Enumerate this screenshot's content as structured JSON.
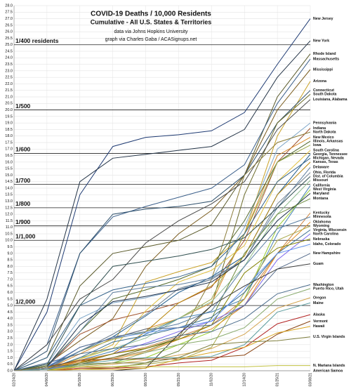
{
  "chart_data": {
    "type": "line",
    "title": "COVID-19 Deaths / 10,000 Residents",
    "subtitle": "Cumulative - All U.S. States & Territories",
    "notes": [
      "data via Johns Hopkins University",
      "graph via Charles Gaba / ACASignups.net"
    ],
    "categories": [
      "02/24/20",
      "04/06/20",
      "05/18/20",
      "06/29/20",
      "08/10/20",
      "09/21/20",
      "11/02/20",
      "12/14/20",
      "01/25/21",
      "03/08/21"
    ],
    "ylim": [
      0,
      28
    ],
    "yticks": [
      {
        "value": 0,
        "label": "0.0"
      },
      0.5,
      {
        "value": 1,
        "label": "1.0"
      },
      1.5,
      {
        "value": 2,
        "label": "2.0"
      },
      2.5,
      {
        "value": 3,
        "label": "3.0"
      },
      3.5,
      {
        "value": 4,
        "label": "4.0"
      },
      4.5,
      {
        "value": 5,
        "label": "5.0"
      },
      5.5,
      {
        "value": 6,
        "label": "6.0"
      },
      6.5,
      {
        "value": 7,
        "label": "7.0"
      },
      7.5,
      {
        "value": 8,
        "label": "8.0"
      },
      8.5,
      {
        "value": 9,
        "label": "9.0"
      },
      9.5,
      {
        "value": 10,
        "label": "10.0"
      },
      10.5,
      {
        "value": 11,
        "label": "11.0"
      },
      11.5,
      {
        "value": 12,
        "label": "12.0"
      },
      12.5,
      {
        "value": 13,
        "label": "13.0"
      },
      13.5,
      {
        "value": 14,
        "label": "14.0"
      },
      14.5,
      {
        "value": 15,
        "label": "15.0"
      },
      15.5,
      {
        "value": 16,
        "label": "16.0"
      },
      16.5,
      {
        "value": 17,
        "label": "17.0"
      },
      17.5,
      {
        "value": 18,
        "label": "18.0"
      },
      18.5,
      {
        "value": 19,
        "label": "19.0"
      },
      19.5,
      {
        "value": 20,
        "label": "20.0"
      },
      20.5,
      {
        "value": 21,
        "label": "21.0"
      },
      21.5,
      {
        "value": 22,
        "label": "22.0"
      },
      22.5,
      {
        "value": 23,
        "label": "23.0"
      },
      23.5,
      {
        "value": 24,
        "label": "24.0"
      },
      24.5,
      {
        "value": 25,
        "label": "25.0"
      },
      25.5,
      {
        "value": 26,
        "label": "26.0"
      },
      26.5,
      {
        "value": 27,
        "label": "27.0"
      },
      27.5,
      {
        "value": 28,
        "label": "28.0"
      }
    ],
    "grid": true,
    "reference_lines": [
      {
        "value": 25,
        "label": "1/400 residents"
      },
      {
        "value": 20,
        "label": "1/500"
      },
      {
        "value": 16.67,
        "label": "1/600"
      },
      {
        "value": 14.29,
        "label": "1/700"
      },
      {
        "value": 12.5,
        "label": "1/800"
      },
      {
        "value": 11.11,
        "label": "1/900"
      },
      {
        "value": 10,
        "label": "1/1,000"
      },
      {
        "value": 5,
        "label": "1/2,000"
      }
    ],
    "series": [
      {
        "name": "New Jersey",
        "color": "#1f3b73",
        "values": [
          0,
          4.5,
          13.5,
          17.2,
          17.9,
          18.1,
          18.4,
          19.8,
          23.5,
          27.0
        ]
      },
      {
        "name": "New York",
        "color": "#243447",
        "values": [
          0,
          5.5,
          14.5,
          16.3,
          16.6,
          16.9,
          17.2,
          18.5,
          22.5,
          25.3
        ]
      },
      {
        "name": "Rhode Island",
        "color": "#5a5a2a",
        "values": [
          0,
          1.0,
          6.5,
          9.0,
          9.5,
          10.0,
          11.2,
          15.0,
          21.0,
          24.3
        ]
      },
      {
        "name": "Massachusetts",
        "color": "#3b5f8a",
        "values": [
          0,
          2.0,
          9.0,
          11.8,
          12.6,
          13.3,
          14.0,
          15.8,
          20.5,
          23.9
        ]
      },
      {
        "name": "Mississippi",
        "color": "#7a5c1e",
        "values": [
          0,
          0.5,
          2.3,
          4.0,
          8.0,
          10.5,
          12.3,
          15.0,
          20.0,
          23.1
        ]
      },
      {
        "name": "Arizona",
        "color": "#c9a227",
        "values": [
          0,
          0.2,
          0.9,
          2.0,
          6.8,
          7.6,
          8.3,
          10.5,
          18.0,
          22.2
        ]
      },
      {
        "name": "Connecticut",
        "color": "#2d4f6b",
        "values": [
          0,
          1.5,
          9.0,
          12.0,
          12.4,
          12.6,
          13.0,
          15.0,
          19.0,
          21.5
        ]
      },
      {
        "name": "South Dakota",
        "color": "#6b6b2a",
        "values": [
          0,
          0,
          0.5,
          1.0,
          1.7,
          2.5,
          5.0,
          13.5,
          19.0,
          21.2
        ]
      },
      {
        "name": "Louisiana, Alabama",
        "color": "#4a4a4a",
        "values": [
          0,
          2.0,
          5.5,
          7.0,
          9.8,
          11.5,
          12.8,
          14.5,
          18.5,
          20.8
        ]
      },
      {
        "name": "Pennsylvania",
        "color": "#7fa7c9",
        "values": [
          0,
          0.5,
          4.0,
          5.2,
          5.6,
          6.2,
          7.0,
          11.0,
          17.0,
          19.0
        ]
      },
      {
        "name": "Indiana",
        "color": "#a0522d",
        "values": [
          0,
          0.3,
          2.8,
          3.9,
          4.5,
          5.2,
          6.4,
          10.0,
          16.0,
          18.6
        ]
      },
      {
        "name": "North Dakota",
        "color": "#8b7d3a",
        "values": [
          0,
          0,
          0.6,
          1.0,
          1.5,
          2.5,
          7.0,
          15.0,
          17.5,
          18.3
        ]
      },
      {
        "name": "New Mexico",
        "color": "#d98c2b",
        "values": [
          0,
          0.1,
          1.3,
          2.5,
          3.2,
          4.0,
          5.2,
          10.5,
          16.5,
          17.9
        ]
      },
      {
        "name": "Illinois, Arkansas",
        "color": "#556b2f",
        "values": [
          0,
          0.4,
          3.0,
          5.5,
          6.2,
          7.0,
          8.0,
          11.5,
          16.0,
          17.6
        ]
      },
      {
        "name": "Iowa",
        "color": "#9aa84a",
        "values": [
          0,
          0.1,
          1.5,
          2.4,
          3.0,
          4.0,
          5.5,
          10.5,
          16.0,
          17.3
        ]
      },
      {
        "name": "South Carolina",
        "color": "#e0c040",
        "values": [
          0,
          0.1,
          0.9,
          1.7,
          4.6,
          6.8,
          7.7,
          9.6,
          14.5,
          16.9
        ]
      },
      {
        "name": "Georgia, Tennessee",
        "color": "#1e5b8c",
        "values": [
          0,
          0.3,
          1.5,
          2.6,
          4.2,
          6.0,
          7.2,
          8.8,
          13.5,
          16.6
        ]
      },
      {
        "name": "Michigan, Nevada",
        "color": "#36648b",
        "values": [
          0,
          1.0,
          5.0,
          6.2,
          6.7,
          7.2,
          8.0,
          10.5,
          14.5,
          16.3
        ]
      },
      {
        "name": "Kansas, Texas",
        "color": "#b8860b",
        "values": [
          0,
          0.1,
          0.7,
          1.3,
          3.0,
          5.2,
          6.5,
          8.8,
          13.5,
          16.0
        ]
      },
      {
        "name": "Delaware",
        "color": "#5f7f9f",
        "values": [
          0,
          0.3,
          3.0,
          6.0,
          6.4,
          6.6,
          7.1,
          8.5,
          12.5,
          15.6
        ]
      },
      {
        "name": "Ohio, Florida",
        "color": "#708090",
        "values": [
          0,
          0.2,
          1.5,
          2.8,
          4.3,
          6.3,
          7.0,
          8.5,
          12.8,
          15.2
        ]
      },
      {
        "name": "Dist. of Columbia",
        "color": "#2f4f4f",
        "values": [
          0,
          0.5,
          5.0,
          8.0,
          8.4,
          8.8,
          9.3,
          10.2,
          12.5,
          14.9
        ]
      },
      {
        "name": "Missouri",
        "color": "#8fbc8f",
        "values": [
          0,
          0.1,
          1.0,
          1.7,
          2.5,
          4.0,
          5.3,
          8.0,
          12.0,
          14.6
        ]
      },
      {
        "name": "California",
        "color": "#4682b4",
        "values": [
          0,
          0.1,
          0.8,
          1.5,
          2.8,
          4.0,
          4.5,
          5.5,
          10.5,
          14.2
        ]
      },
      {
        "name": "West Virginia",
        "color": "#9acd32",
        "values": [
          0,
          0,
          0.4,
          0.6,
          1.0,
          2.0,
          3.0,
          5.5,
          11.0,
          13.9
        ]
      },
      {
        "name": "Maryland",
        "color": "#1c2f4a",
        "values": [
          0,
          0.3,
          3.5,
          5.3,
          5.7,
          6.2,
          6.8,
          8.5,
          11.5,
          13.6
        ]
      },
      {
        "name": "Montana",
        "color": "#6e8b3d",
        "values": [
          0,
          0,
          0.1,
          0.2,
          0.6,
          1.5,
          4.0,
          9.0,
          12.0,
          13.2
        ]
      },
      {
        "name": "Kentucky",
        "color": "#cd853f",
        "values": [
          0,
          0.1,
          0.8,
          1.3,
          1.8,
          2.6,
          3.5,
          5.5,
          9.0,
          12.1
        ]
      },
      {
        "name": "Minnesota",
        "color": "#5b7fa3",
        "values": [
          0,
          0.1,
          1.5,
          2.6,
          3.0,
          3.6,
          4.6,
          8.0,
          10.9,
          11.8
        ]
      },
      {
        "name": "Oklahoma",
        "color": "#e08a1e",
        "values": [
          0,
          0.2,
          0.7,
          0.9,
          1.4,
          2.4,
          3.2,
          5.0,
          9.0,
          11.4
        ]
      },
      {
        "name": "Wyoming",
        "color": "#a9a94a",
        "values": [
          0,
          0,
          0.2,
          0.3,
          0.5,
          0.8,
          1.8,
          6.0,
          10.0,
          11.1
        ]
      },
      {
        "name": "Virginia, Wisconsin",
        "color": "#3a6e8f",
        "values": [
          0,
          0.1,
          1.0,
          2.2,
          2.7,
          3.3,
          4.1,
          6.0,
          9.0,
          10.8
        ]
      },
      {
        "name": "North Carolina",
        "color": "#7b68ee",
        "values": [
          0,
          0.1,
          0.6,
          1.3,
          2.1,
          3.0,
          3.8,
          5.0,
          8.5,
          10.5
        ]
      },
      {
        "name": "Nebraska",
        "color": "#808000",
        "values": [
          0,
          0,
          0.6,
          1.3,
          1.7,
          2.4,
          3.5,
          7.5,
          9.4,
          10.1
        ]
      },
      {
        "name": "Idaho, Colorado",
        "color": "#6495ed",
        "values": [
          0,
          0.3,
          1.8,
          2.5,
          2.9,
          3.3,
          3.8,
          6.3,
          9.0,
          9.7
        ]
      },
      {
        "name": "New Hampshire",
        "color": "#556b8b",
        "values": [
          0,
          0.2,
          1.8,
          2.5,
          3.2,
          3.3,
          3.5,
          5.0,
          7.8,
          9.0
        ]
      },
      {
        "name": "Guam",
        "color": "#3c3c3c",
        "values": [
          0,
          0,
          0,
          0,
          0.2,
          2.8,
          5.0,
          6.5,
          7.8,
          8.2
        ]
      },
      {
        "name": "Washington",
        "color": "#4b6c8c",
        "values": [
          0,
          0.6,
          1.3,
          1.7,
          2.0,
          2.7,
          3.0,
          4.0,
          5.9,
          6.6
        ]
      },
      {
        "name": "Puerto Rico, Utah",
        "color": "#87a96b",
        "values": [
          0,
          0.1,
          0.4,
          0.6,
          1.4,
          2.0,
          2.4,
          3.3,
          5.5,
          6.3
        ]
      },
      {
        "name": "Oregon",
        "color": "#d2a24c",
        "values": [
          0,
          0.1,
          0.3,
          0.5,
          0.8,
          1.2,
          1.7,
          2.8,
          4.8,
          5.6
        ]
      },
      {
        "name": "Maine",
        "color": "#5f9ea0",
        "values": [
          0,
          0.1,
          0.5,
          0.8,
          1.0,
          1.0,
          1.1,
          2.0,
          4.5,
          5.2
        ]
      },
      {
        "name": "Alaska",
        "color": "#b22222",
        "values": [
          0,
          0,
          0.2,
          0.2,
          0.3,
          0.6,
          0.8,
          1.8,
          3.6,
          4.3
        ]
      },
      {
        "name": "Vermont",
        "color": "#8b4513",
        "values": [
          0,
          0.3,
          0.8,
          0.9,
          0.9,
          0.9,
          1.0,
          1.2,
          2.8,
          3.8
        ]
      },
      {
        "name": "Hawaii",
        "color": "#daa520",
        "values": [
          0,
          0,
          0.1,
          0.1,
          0.2,
          0.9,
          1.4,
          1.8,
          2.9,
          3.4
        ]
      },
      {
        "name": "U.S. Virgin Islands",
        "color": "#7f7f3f",
        "values": [
          0,
          0.3,
          0.5,
          0.6,
          0.6,
          1.0,
          2.0,
          2.2,
          2.3,
          2.6
        ]
      },
      {
        "name": "N. Mariana Islands",
        "color": "#c0c040",
        "values": [
          0,
          0,
          0.3,
          0.3,
          0.3,
          0.3,
          0.3,
          0.3,
          0.4,
          0.4
        ]
      },
      {
        "name": "American Samoa",
        "color": "#9e9e9e",
        "values": [
          0,
          0,
          0,
          0,
          0,
          0,
          0,
          0,
          0,
          0
        ]
      }
    ]
  }
}
